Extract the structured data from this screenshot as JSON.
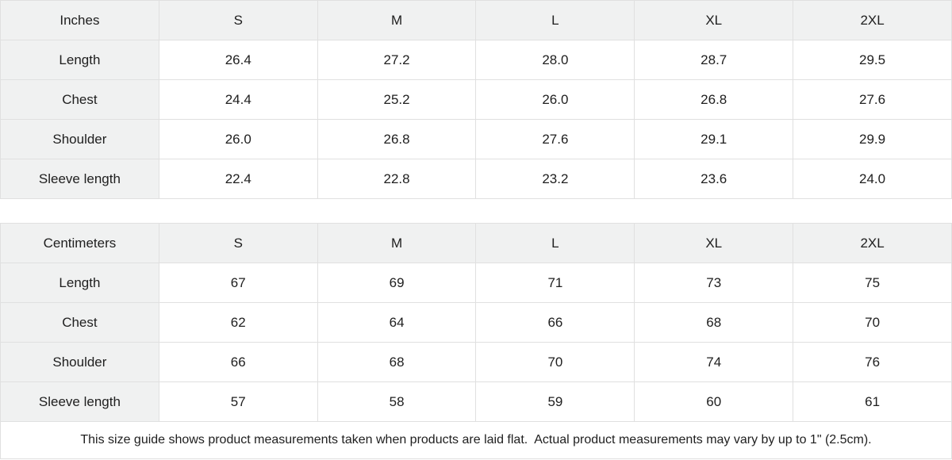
{
  "colors": {
    "header_bg": "#f0f1f1",
    "cell_bg": "#ffffff",
    "border": "#e0e0e0",
    "text": "#202020"
  },
  "tables": [
    {
      "unit_label": "Inches",
      "sizes": [
        "S",
        "M",
        "L",
        "XL",
        "2XL"
      ],
      "rows": [
        {
          "label": "Length",
          "values": [
            "26.4",
            "27.2",
            "28.0",
            "28.7",
            "29.5"
          ]
        },
        {
          "label": "Chest",
          "values": [
            "24.4",
            "25.2",
            "26.0",
            "26.8",
            "27.6"
          ]
        },
        {
          "label": "Shoulder",
          "values": [
            "26.0",
            "26.8",
            "27.6",
            "29.1",
            "29.9"
          ]
        },
        {
          "label": "Sleeve length",
          "values": [
            "22.4",
            "22.8",
            "23.2",
            "23.6",
            "24.0"
          ]
        }
      ]
    },
    {
      "unit_label": "Centimeters",
      "sizes": [
        "S",
        "M",
        "L",
        "XL",
        "2XL"
      ],
      "rows": [
        {
          "label": "Length",
          "values": [
            "67",
            "69",
            "71",
            "73",
            "75"
          ]
        },
        {
          "label": "Chest",
          "values": [
            "62",
            "64",
            "66",
            "68",
            "70"
          ]
        },
        {
          "label": "Shoulder",
          "values": [
            "66",
            "68",
            "70",
            "74",
            "76"
          ]
        },
        {
          "label": "Sleeve length",
          "values": [
            "57",
            "58",
            "59",
            "60",
            "61"
          ]
        }
      ]
    }
  ],
  "footer": {
    "note": "This size guide shows product measurements taken when products are laid flat.  Actual product measurements may vary by up to 1\" (2.5cm)."
  },
  "chart_data": [
    {
      "type": "table",
      "title": "Size guide (Inches)",
      "columns": [
        "Inches",
        "S",
        "M",
        "L",
        "XL",
        "2XL"
      ],
      "rows": [
        [
          "Length",
          26.4,
          27.2,
          28.0,
          28.7,
          29.5
        ],
        [
          "Chest",
          24.4,
          25.2,
          26.0,
          26.8,
          27.6
        ],
        [
          "Shoulder",
          26.0,
          26.8,
          27.6,
          29.1,
          29.9
        ],
        [
          "Sleeve length",
          22.4,
          22.8,
          23.2,
          23.6,
          24.0
        ]
      ]
    },
    {
      "type": "table",
      "title": "Size guide (Centimeters)",
      "columns": [
        "Centimeters",
        "S",
        "M",
        "L",
        "XL",
        "2XL"
      ],
      "rows": [
        [
          "Length",
          67,
          69,
          71,
          73,
          75
        ],
        [
          "Chest",
          62,
          64,
          66,
          68,
          70
        ],
        [
          "Shoulder",
          66,
          68,
          70,
          74,
          76
        ],
        [
          "Sleeve length",
          57,
          58,
          59,
          60,
          61
        ]
      ]
    }
  ]
}
